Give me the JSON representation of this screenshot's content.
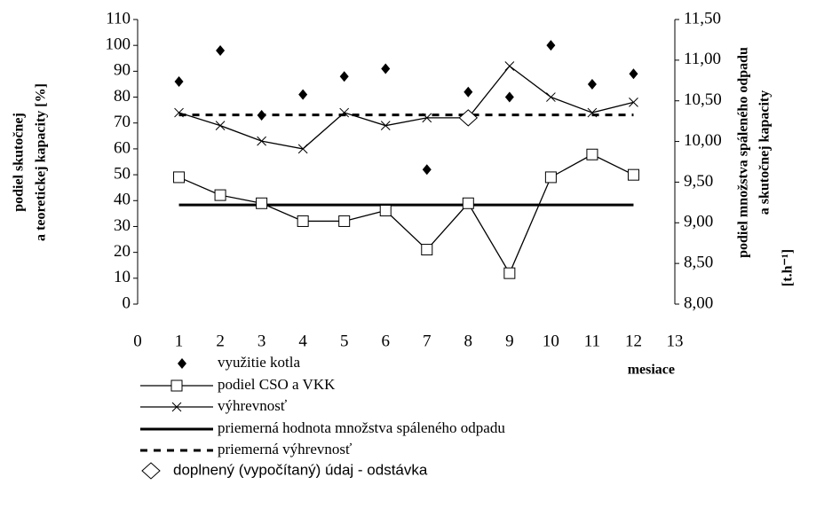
{
  "chart_data": {
    "type": "line",
    "x": [
      1,
      2,
      3,
      4,
      5,
      6,
      7,
      8,
      9,
      10,
      11,
      12
    ],
    "xlim": [
      0,
      13
    ],
    "xticks": [
      0,
      1,
      2,
      3,
      4,
      5,
      6,
      7,
      8,
      9,
      10,
      11,
      12,
      13
    ],
    "ylim": [
      0,
      110
    ],
    "yticks": [
      0,
      10,
      20,
      30,
      40,
      50,
      60,
      70,
      80,
      90,
      100,
      110
    ],
    "y2lim": [
      8,
      11.5
    ],
    "y2ticks": [
      {
        "value": 8,
        "label": "8,00"
      },
      {
        "value": 8.5,
        "label": "8,50"
      },
      {
        "value": 9,
        "label": "9,00"
      },
      {
        "value": 9.5,
        "label": "9,50"
      },
      {
        "value": 10,
        "label": "10,00"
      },
      {
        "value": 10.5,
        "label": "10,50"
      },
      {
        "value": 11,
        "label": "11,00"
      },
      {
        "value": 11.5,
        "label": "11,50"
      }
    ],
    "x_label": "mesiace",
    "y_label": [
      "podiel skutočnej",
      "a teoretickej kapacity [%]"
    ],
    "y2_label": [
      "podiel množstva spáleného odpadu",
      "a skutočnej kapacity",
      "[t.h⁻¹]"
    ],
    "series": [
      {
        "name": "využitie kotla",
        "color": "#000000",
        "marker": "diamond",
        "line": false,
        "values": [
          86,
          98,
          73,
          81,
          88,
          91,
          52,
          82,
          80,
          100,
          85,
          89
        ]
      },
      {
        "name": "podiel CSO a VKK",
        "color": "#000000",
        "marker": "square",
        "line": true,
        "axis": "y2",
        "values": [
          9.56,
          9.34,
          9.24,
          9.02,
          9.02,
          9.15,
          8.67,
          9.24,
          8.38,
          9.56,
          9.84,
          9.59
        ]
      },
      {
        "name": "výhrevnosť",
        "color": "#000000",
        "marker": "x",
        "line": true,
        "values": [
          74,
          69,
          63,
          60,
          74,
          69,
          72,
          72,
          92,
          80,
          74,
          78
        ]
      },
      {
        "name": "priemerná hodnota množstva spáleného odpadu",
        "color": "#000000",
        "style": "solid",
        "axis": "y2",
        "value": 9.22
      },
      {
        "name": "priemerná výhrevnosť",
        "color": "#000000",
        "style": "dashed",
        "value": 73.1
      },
      {
        "name": "doplnený (vypočítaný) údaj - odstávka",
        "color": "#000000",
        "marker": "open-diamond",
        "line": false,
        "x": [
          8
        ],
        "values": [
          72
        ]
      }
    ]
  }
}
